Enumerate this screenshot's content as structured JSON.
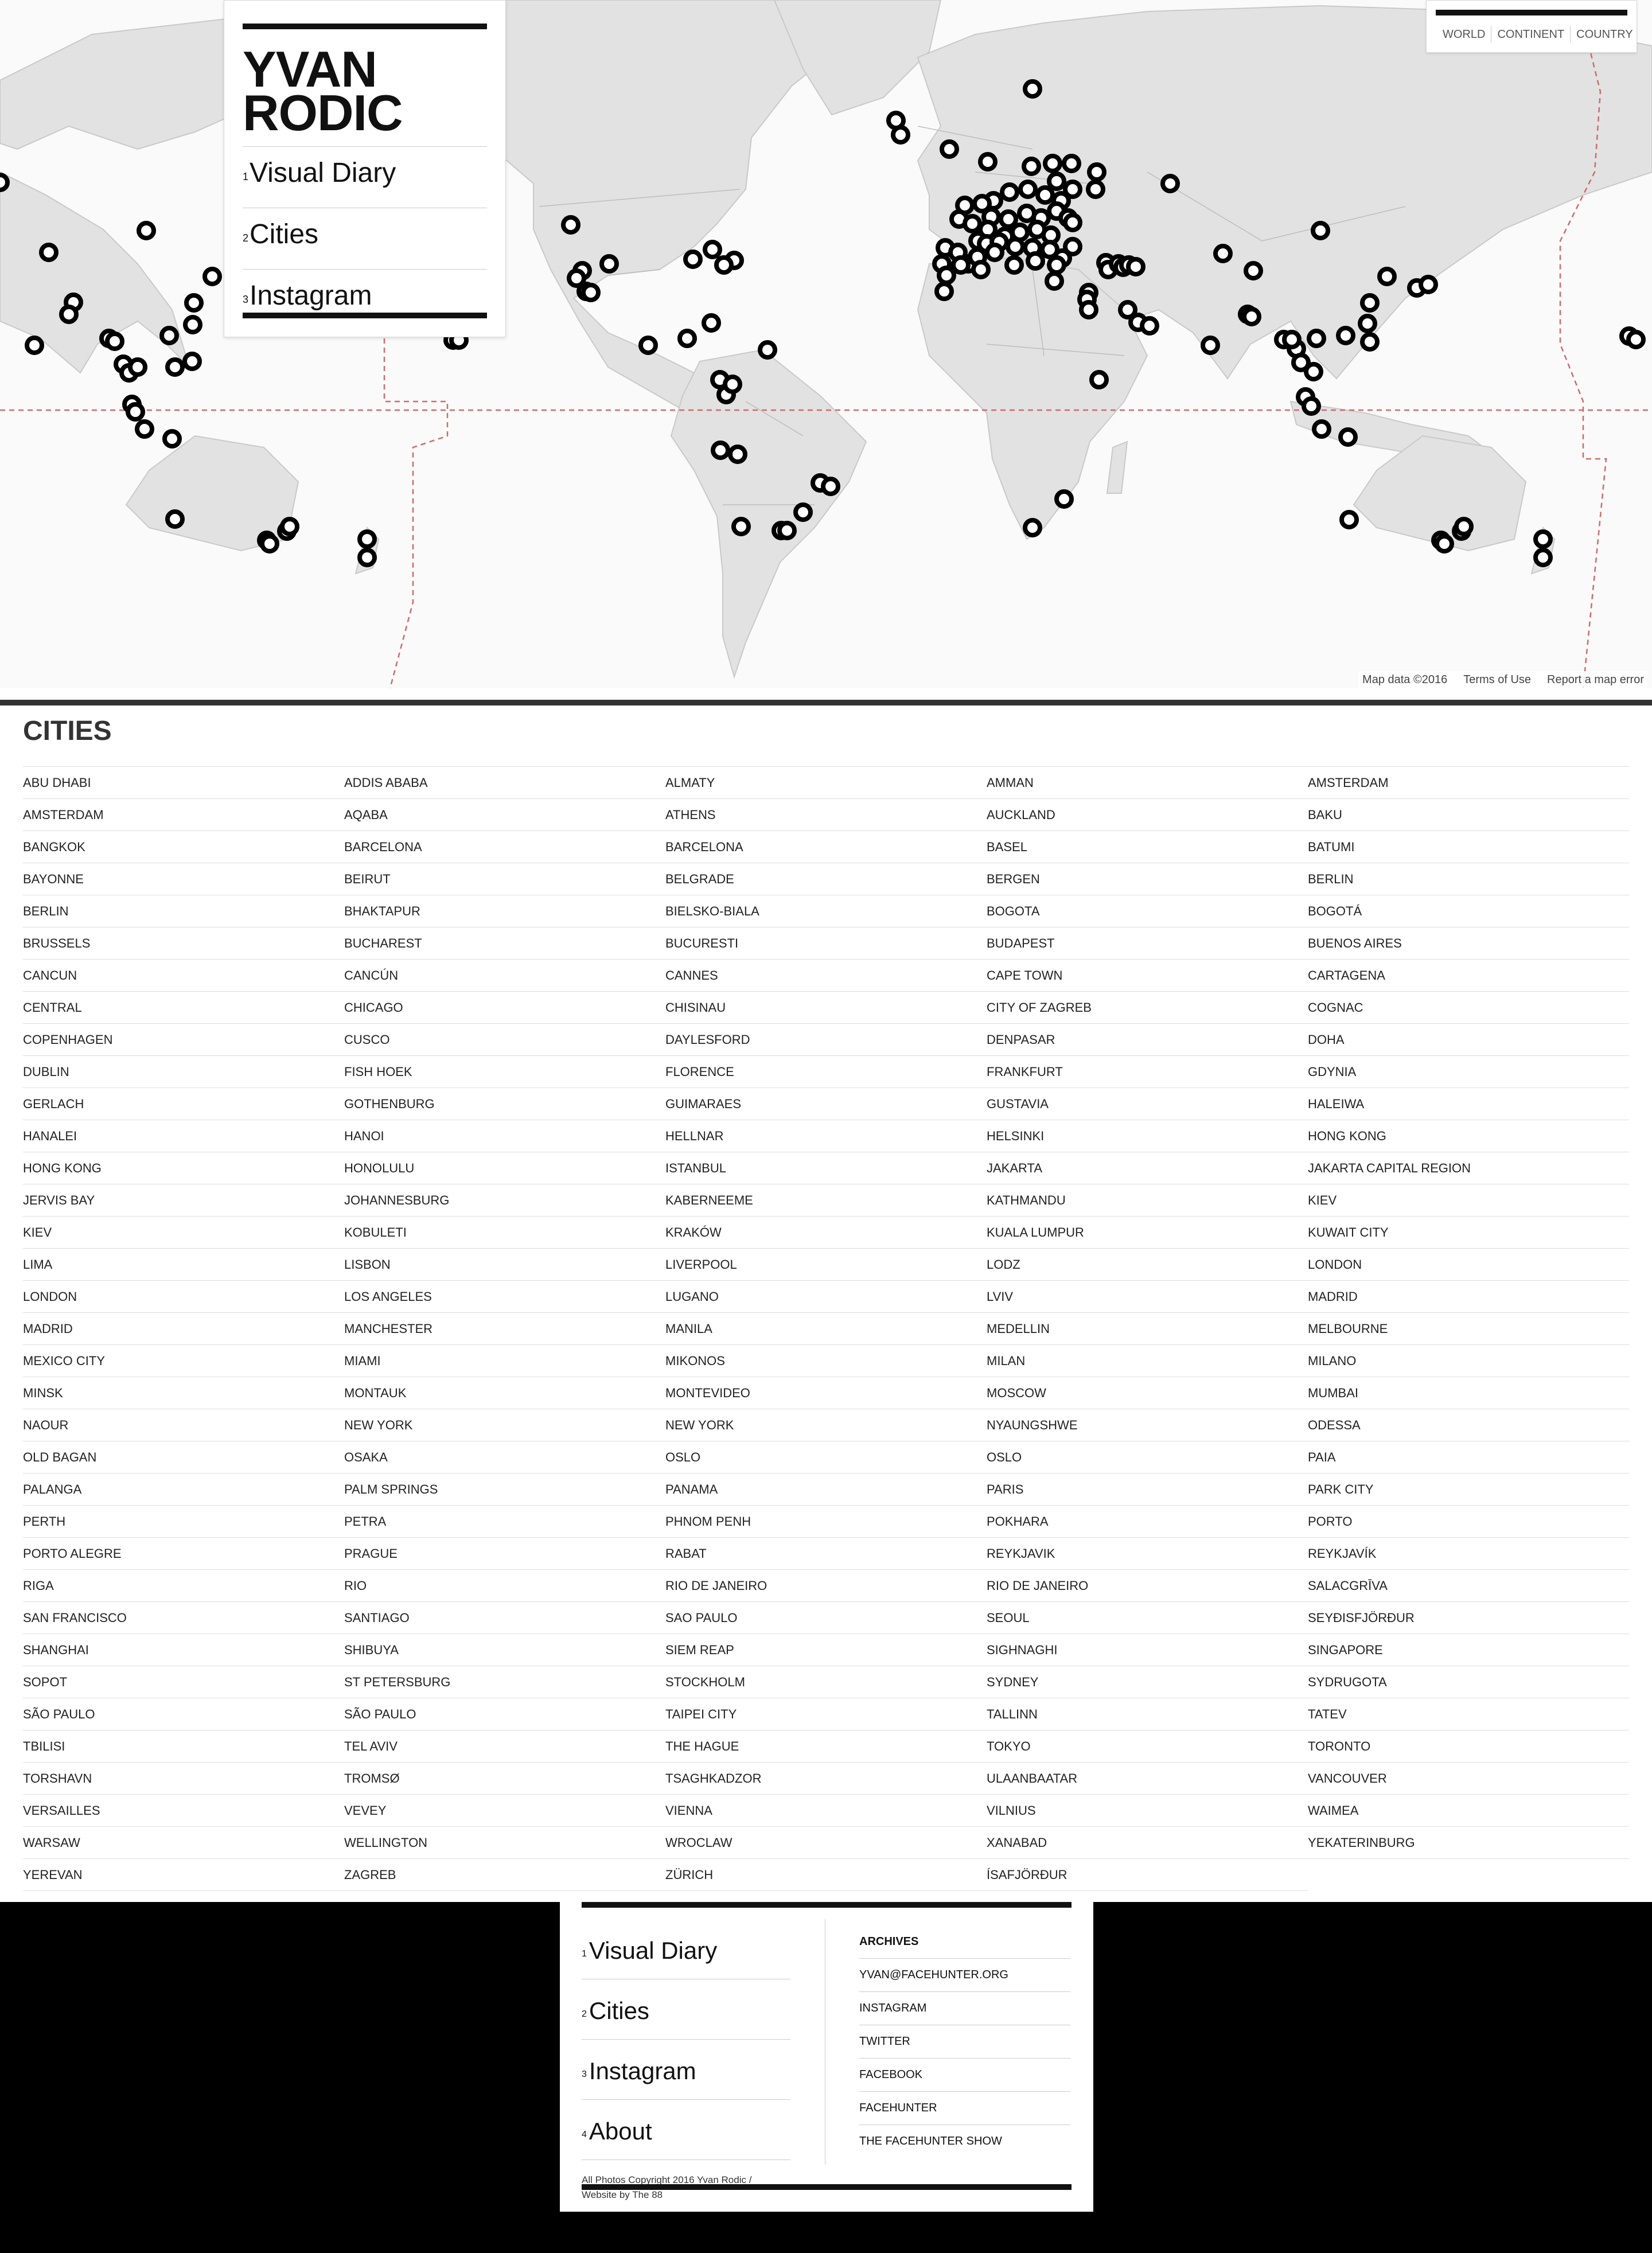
{
  "header": {
    "brand_line1": "YVAN",
    "brand_line2": "RODIC",
    "nav": [
      {
        "num": "1",
        "label": "Visual Diary"
      },
      {
        "num": "2",
        "label": "Cities"
      },
      {
        "num": "3",
        "label": "Instagram"
      }
    ]
  },
  "map_scope": {
    "options": [
      "WORLD",
      "CONTINENT",
      "COUNTRY"
    ]
  },
  "map_footer": {
    "data": "Map data ©2016",
    "terms": "Terms of Use",
    "report": "Report a map error"
  },
  "cities": {
    "title": "CITIES",
    "items": [
      "ABU DHABI",
      "ADDIS ABABA",
      "ALMATY",
      "AMMAN",
      "AMSTERDAM",
      "AMSTERDAM",
      "AQABA",
      "ATHENS",
      "AUCKLAND",
      "BAKU",
      "BANGKOK",
      "BARCELONA",
      "BARCELONA",
      "BASEL",
      "BATUMI",
      "BAYONNE",
      "BEIRUT",
      "BELGRADE",
      "BERGEN",
      "BERLIN",
      "BERLIN",
      "BHAKTAPUR",
      "BIELSKO-BIALA",
      "BOGOTA",
      "BOGOTÁ",
      "BRUSSELS",
      "BUCHAREST",
      "BUCURESTI",
      "BUDAPEST",
      "BUENOS AIRES",
      "CANCUN",
      "CANCÚN",
      "CANNES",
      "CAPE TOWN",
      "CARTAGENA",
      "CENTRAL",
      "CHICAGO",
      "CHISINAU",
      "CITY OF ZAGREB",
      "COGNAC",
      "COPENHAGEN",
      "CUSCO",
      "DAYLESFORD",
      "DENPASAR",
      "DOHA",
      "DUBLIN",
      "FISH HOEK",
      "FLORENCE",
      "FRANKFURT",
      "GDYNIA",
      "GERLACH",
      "GOTHENBURG",
      "GUIMARAES",
      "GUSTAVIA",
      "HALEIWA",
      "HANALEI",
      "HANOI",
      "HELLNAR",
      "HELSINKI",
      "HONG KONG",
      "HONG KONG",
      "HONOLULU",
      "ISTANBUL",
      "JAKARTA",
      "JAKARTA CAPITAL REGION",
      "JERVIS BAY",
      "JOHANNESBURG",
      "KABERNEEME",
      "KATHMANDU",
      "KIEV",
      "KIEV",
      "KOBULETI",
      "KRAKÓW",
      "KUALA LUMPUR",
      "KUWAIT CITY",
      "LIMA",
      "LISBON",
      "LIVERPOOL",
      "LODZ",
      "LONDON",
      "LONDON",
      "LOS ANGELES",
      "LUGANO",
      "LVIV",
      "MADRID",
      "MADRID",
      "MANCHESTER",
      "MANILA",
      "MEDELLIN",
      "MELBOURNE",
      "MEXICO CITY",
      "MIAMI",
      "MIKONOS",
      "MILAN",
      "MILANO",
      "MINSK",
      "MONTAUK",
      "MONTEVIDEO",
      "MOSCOW",
      "MUMBAI",
      "NAOUR",
      "NEW YORK",
      "NEW YORK",
      "NYAUNGSHWE",
      "ODESSA",
      "OLD BAGAN",
      "OSAKA",
      "OSLO",
      "OSLO",
      "PAIA",
      "PALANGA",
      "PALM SPRINGS",
      "PANAMA",
      "PARIS",
      "PARK CITY",
      "PERTH",
      "PETRA",
      "PHNOM PENH",
      "POKHARA",
      "PORTO",
      "PORTO ALEGRE",
      "PRAGUE",
      "RABAT",
      "REYKJAVIK",
      "REYKJAVÍK",
      "RIGA",
      "RIO",
      "RIO DE JANEIRO",
      "RIO DE JANEIRO",
      "SALACGRĪVA",
      "SAN FRANCISCO",
      "SANTIAGO",
      "SAO PAULO",
      "SEOUL",
      "SEYÐISFJÖRÐUR",
      "SHANGHAI",
      "SHIBUYA",
      "SIEM REAP",
      "SIGHNAGHI",
      "SINGAPORE",
      "SOPOT",
      "ST PETERSBURG",
      "STOCKHOLM",
      "SYDNEY",
      "SYDRUGOTA",
      "SÃO PAULO",
      "SÃO PAULO",
      "TAIPEI CITY",
      "TALLINN",
      "TATEV",
      "TBILISI",
      "TEL AVIV",
      "THE HAGUE",
      "TOKYO",
      "TORONTO",
      "TORSHAVN",
      "TROMSØ",
      "TSAGHKADZOR",
      "ULAANBAATAR",
      "VANCOUVER",
      "VERSAILLES",
      "VEVEY",
      "VIENNA",
      "VILNIUS",
      "WAIMEA",
      "WARSAW",
      "WELLINGTON",
      "WROCLAW",
      "XANABAD",
      "YEKATERINBURG",
      "YEREVAN",
      "ZAGREB",
      "ZÜRICH",
      "ÍSAFJÖRÐUR"
    ]
  },
  "footer": {
    "nav": [
      {
        "num": "1",
        "label": "Visual Diary"
      },
      {
        "num": "2",
        "label": "Cities"
      },
      {
        "num": "3",
        "label": "Instagram"
      },
      {
        "num": "4",
        "label": "About"
      }
    ],
    "copyright_line1": "All Photos Copyright 2016 Yvan Rodic /",
    "copyright_line2": "Website by The 88",
    "archives_label": "ARCHIVES",
    "links": [
      "YVAN@FACEHUNTER.ORG",
      "INSTAGRAM",
      "TWITTER",
      "FACEBOOK",
      "FACEHUNTER",
      "THE FACEHUNTER SHOW"
    ]
  }
}
